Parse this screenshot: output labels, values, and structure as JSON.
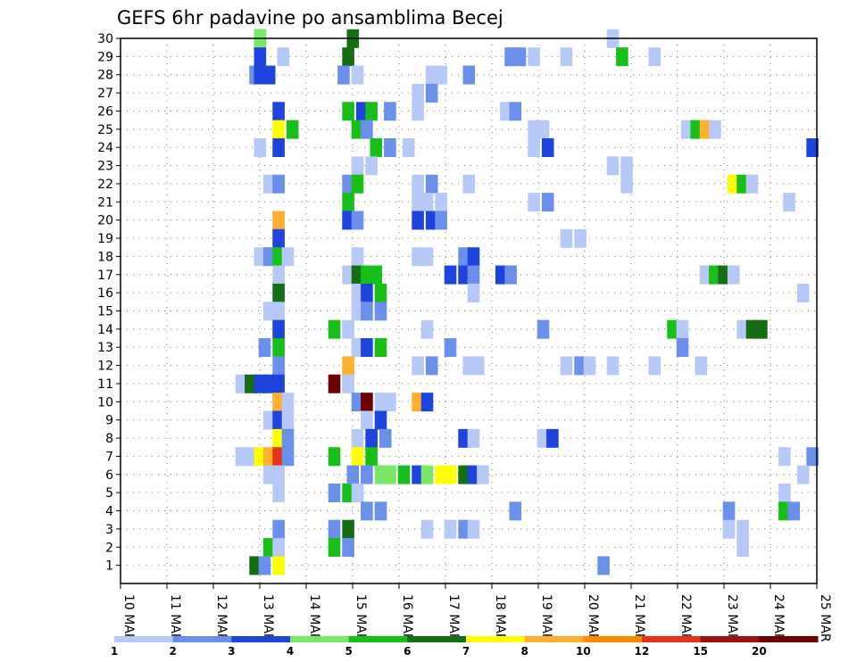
{
  "chart_data": {
    "type": "heatmap",
    "title": "GEFS 6hr padavine po ansamblima Becej",
    "x_tick_labels": [
      "10 MAR",
      "11 MAR",
      "12 MAR",
      "13 MAR",
      "14 MAR",
      "15 MAR",
      "16 MAR",
      "17 MAR",
      "18 MAR",
      "19 MAR",
      "20 MAR",
      "21 MAR",
      "22 MAR",
      "23 MAR",
      "24 MAR",
      "25 MAR"
    ],
    "xlim_days": [
      0,
      15
    ],
    "y_ticks": [
      1,
      2,
      3,
      4,
      5,
      6,
      7,
      8,
      9,
      10,
      11,
      12,
      13,
      14,
      15,
      16,
      17,
      18,
      19,
      20,
      21,
      22,
      23,
      24,
      25,
      26,
      27,
      28,
      29,
      30
    ],
    "ylim": [
      0,
      30
    ],
    "grid": true,
    "colorbar": {
      "tick_labels": [
        "1",
        "2",
        "3",
        "4",
        "5",
        "6",
        "7",
        "8",
        "10",
        "12",
        "15",
        "20"
      ],
      "colors": [
        "#b7c9f7",
        "#6a90ec",
        "#1d44dc",
        "#7ae867",
        "#18bf18",
        "#146e14",
        "#ffff00",
        "#ffb030",
        "#ff8a00",
        "#e8321e",
        "#a01010",
        "#6e0000"
      ]
    },
    "cells": [
      [
        13,
        30,
        3
      ],
      [
        13,
        30,
        4
      ],
      [
        15,
        30,
        6
      ],
      [
        20.6,
        30,
        1
      ],
      [
        13,
        29,
        1
      ],
      [
        13,
        29,
        3
      ],
      [
        13.5,
        29,
        1
      ],
      [
        14.9,
        29,
        6
      ],
      [
        18.4,
        29,
        2
      ],
      [
        18.6,
        29,
        2
      ],
      [
        18.9,
        29,
        1
      ],
      [
        19.6,
        29,
        1
      ],
      [
        20.8,
        29,
        5
      ],
      [
        21.5,
        29,
        1
      ],
      [
        12.9,
        28,
        2
      ],
      [
        13,
        28,
        3
      ],
      [
        13.2,
        28,
        3
      ],
      [
        14.8,
        28,
        2
      ],
      [
        15.1,
        28,
        1
      ],
      [
        16.7,
        28,
        1
      ],
      [
        16.9,
        28,
        1
      ],
      [
        17.5,
        28,
        2
      ],
      [
        16.4,
        27,
        1
      ],
      [
        16.7,
        27,
        2
      ],
      [
        13.4,
        26,
        3
      ],
      [
        14.9,
        26,
        5
      ],
      [
        15.2,
        26,
        3
      ],
      [
        15.4,
        26,
        5
      ],
      [
        15.8,
        26,
        2
      ],
      [
        16.4,
        26,
        1
      ],
      [
        18.3,
        26,
        1
      ],
      [
        18.5,
        26,
        2
      ],
      [
        13.4,
        25,
        7
      ],
      [
        13.7,
        25,
        5
      ],
      [
        15.1,
        25,
        5
      ],
      [
        15.3,
        25,
        2
      ],
      [
        18.9,
        25,
        1
      ],
      [
        19.1,
        25,
        1
      ],
      [
        22.2,
        25,
        1
      ],
      [
        22.4,
        25,
        5
      ],
      [
        22.6,
        25,
        8
      ],
      [
        22.8,
        25,
        1
      ],
      [
        13,
        24,
        1
      ],
      [
        13.4,
        24,
        3
      ],
      [
        15.5,
        24,
        5
      ],
      [
        15.8,
        24,
        2
      ],
      [
        16.2,
        24,
        1
      ],
      [
        18.9,
        24,
        1
      ],
      [
        19.2,
        24,
        3
      ],
      [
        24.9,
        24,
        3
      ],
      [
        15.1,
        23,
        1
      ],
      [
        15.4,
        23,
        1
      ],
      [
        20.6,
        23,
        1
      ],
      [
        20.9,
        23,
        1
      ],
      [
        13.2,
        22,
        1
      ],
      [
        13.4,
        22,
        2
      ],
      [
        14.9,
        22,
        2
      ],
      [
        15.1,
        22,
        5
      ],
      [
        16.4,
        22,
        1
      ],
      [
        16.7,
        22,
        2
      ],
      [
        17.5,
        22,
        1
      ],
      [
        20.9,
        22,
        1
      ],
      [
        23.2,
        22,
        7
      ],
      [
        23.4,
        22,
        5
      ],
      [
        23.6,
        22,
        1
      ],
      [
        14.9,
        21,
        5
      ],
      [
        16.4,
        21,
        1
      ],
      [
        16.6,
        21,
        1
      ],
      [
        16.9,
        21,
        1
      ],
      [
        18.9,
        21,
        1
      ],
      [
        19.2,
        21,
        2
      ],
      [
        24.4,
        21,
        1
      ],
      [
        13.4,
        20,
        8
      ],
      [
        14.9,
        20,
        3
      ],
      [
        15.1,
        20,
        2
      ],
      [
        16.4,
        20,
        3
      ],
      [
        16.7,
        20,
        3
      ],
      [
        16.9,
        20,
        2
      ],
      [
        13.4,
        19,
        3
      ],
      [
        19.6,
        19,
        1
      ],
      [
        19.9,
        19,
        1
      ],
      [
        13,
        18,
        1
      ],
      [
        13.2,
        18,
        2
      ],
      [
        13.4,
        18,
        5
      ],
      [
        13.6,
        18,
        1
      ],
      [
        15.1,
        18,
        1
      ],
      [
        16.4,
        18,
        1
      ],
      [
        16.6,
        18,
        1
      ],
      [
        17.4,
        18,
        2
      ],
      [
        17.6,
        18,
        3
      ],
      [
        13.4,
        17,
        1
      ],
      [
        14.9,
        17,
        1
      ],
      [
        15.1,
        17,
        6
      ],
      [
        15.3,
        17,
        5
      ],
      [
        15.5,
        17,
        5
      ],
      [
        17.1,
        17,
        3
      ],
      [
        17.4,
        17,
        3
      ],
      [
        17.6,
        17,
        2
      ],
      [
        18.2,
        17,
        3
      ],
      [
        18.4,
        17,
        2
      ],
      [
        22.6,
        17,
        1
      ],
      [
        22.8,
        17,
        5
      ],
      [
        23,
        17,
        6
      ],
      [
        23.2,
        17,
        1
      ],
      [
        13.4,
        16,
        6
      ],
      [
        15.1,
        16,
        1
      ],
      [
        15.3,
        16,
        3
      ],
      [
        15.6,
        16,
        5
      ],
      [
        17.6,
        16,
        1
      ],
      [
        24.7,
        16,
        1
      ],
      [
        13.2,
        15,
        1
      ],
      [
        13.4,
        15,
        1
      ],
      [
        15.1,
        15,
        1
      ],
      [
        15.3,
        15,
        2
      ],
      [
        15.6,
        15,
        2
      ],
      [
        13.4,
        14,
        3
      ],
      [
        14.6,
        14,
        5
      ],
      [
        14.9,
        14,
        1
      ],
      [
        16.6,
        14,
        1
      ],
      [
        19.1,
        14,
        2
      ],
      [
        21.9,
        14,
        5
      ],
      [
        22.1,
        14,
        1
      ],
      [
        23.4,
        14,
        1
      ],
      [
        23.6,
        14,
        6
      ],
      [
        23.8,
        14,
        6
      ],
      [
        13.1,
        13,
        2
      ],
      [
        13.4,
        13,
        5
      ],
      [
        15.1,
        13,
        1
      ],
      [
        15.3,
        13,
        3
      ],
      [
        15.6,
        13,
        5
      ],
      [
        17.1,
        13,
        2
      ],
      [
        22.1,
        13,
        2
      ],
      [
        13.4,
        12,
        2
      ],
      [
        14.9,
        12,
        8
      ],
      [
        16.4,
        12,
        1
      ],
      [
        16.7,
        12,
        2
      ],
      [
        17.5,
        12,
        1
      ],
      [
        17.7,
        12,
        1
      ],
      [
        19.6,
        12,
        1
      ],
      [
        19.9,
        12,
        2
      ],
      [
        20.1,
        12,
        1
      ],
      [
        20.6,
        12,
        1
      ],
      [
        21.5,
        12,
        1
      ],
      [
        22.5,
        12,
        1
      ],
      [
        12.6,
        11,
        1
      ],
      [
        12.8,
        11,
        6
      ],
      [
        13,
        11,
        3
      ],
      [
        13.2,
        11,
        3
      ],
      [
        13.4,
        11,
        3
      ],
      [
        14.6,
        11,
        14
      ],
      [
        14.9,
        11,
        1
      ],
      [
        13.4,
        10,
        8
      ],
      [
        13.6,
        10,
        1
      ],
      [
        15.1,
        10,
        2
      ],
      [
        15.3,
        10,
        14
      ],
      [
        15.6,
        10,
        1
      ],
      [
        15.8,
        10,
        1
      ],
      [
        16.4,
        10,
        8
      ],
      [
        16.6,
        10,
        3
      ],
      [
        13.2,
        9,
        1
      ],
      [
        13.4,
        9,
        3
      ],
      [
        13.6,
        9,
        1
      ],
      [
        15.3,
        9,
        1
      ],
      [
        15.6,
        9,
        3
      ],
      [
        13.4,
        8,
        7
      ],
      [
        13.6,
        8,
        2
      ],
      [
        15.1,
        8,
        1
      ],
      [
        15.4,
        8,
        3
      ],
      [
        15.7,
        8,
        2
      ],
      [
        17.4,
        8,
        3
      ],
      [
        17.6,
        8,
        1
      ],
      [
        19.1,
        8,
        1
      ],
      [
        19.3,
        8,
        3
      ],
      [
        12.6,
        7,
        1
      ],
      [
        12.8,
        7,
        1
      ],
      [
        13,
        7,
        7
      ],
      [
        13.2,
        7,
        8
      ],
      [
        13.4,
        7,
        10
      ],
      [
        13.6,
        7,
        2
      ],
      [
        14.6,
        7,
        5
      ],
      [
        15.1,
        7,
        7
      ],
      [
        15.4,
        7,
        5
      ],
      [
        24.3,
        7,
        1
      ],
      [
        24.9,
        7,
        2
      ],
      [
        13.2,
        6,
        1
      ],
      [
        13.4,
        6,
        1
      ],
      [
        15,
        6,
        2
      ],
      [
        15.3,
        6,
        2
      ],
      [
        15.6,
        6,
        4
      ],
      [
        15.8,
        6,
        4
      ],
      [
        16.1,
        6,
        5
      ],
      [
        16.4,
        6,
        3
      ],
      [
        16.6,
        6,
        4
      ],
      [
        16.9,
        6,
        7
      ],
      [
        17.1,
        6,
        7
      ],
      [
        17.4,
        6,
        6
      ],
      [
        17.6,
        6,
        3
      ],
      [
        17.8,
        6,
        1
      ],
      [
        24.7,
        6,
        1
      ],
      [
        13.4,
        5,
        1
      ],
      [
        14.6,
        5,
        2
      ],
      [
        14.9,
        5,
        5
      ],
      [
        15.1,
        5,
        1
      ],
      [
        24.3,
        5,
        1
      ],
      [
        15.3,
        4,
        2
      ],
      [
        15.6,
        4,
        2
      ],
      [
        18.5,
        4,
        2
      ],
      [
        23.1,
        4,
        2
      ],
      [
        24.3,
        4,
        5
      ],
      [
        24.5,
        4,
        2
      ],
      [
        13.4,
        3,
        2
      ],
      [
        14.6,
        3,
        2
      ],
      [
        14.9,
        3,
        6
      ],
      [
        16.6,
        3,
        1
      ],
      [
        17.1,
        3,
        1
      ],
      [
        17.4,
        3,
        2
      ],
      [
        17.6,
        3,
        1
      ],
      [
        23.1,
        3,
        1
      ],
      [
        23.4,
        3,
        1
      ],
      [
        13.2,
        2,
        5
      ],
      [
        13.4,
        2,
        1
      ],
      [
        14.6,
        2,
        5
      ],
      [
        14.9,
        2,
        2
      ],
      [
        23.4,
        2,
        1
      ],
      [
        12.9,
        1,
        6
      ],
      [
        13.1,
        1,
        2
      ],
      [
        13.4,
        1,
        7
      ],
      [
        20.4,
        1,
        2
      ]
    ]
  }
}
